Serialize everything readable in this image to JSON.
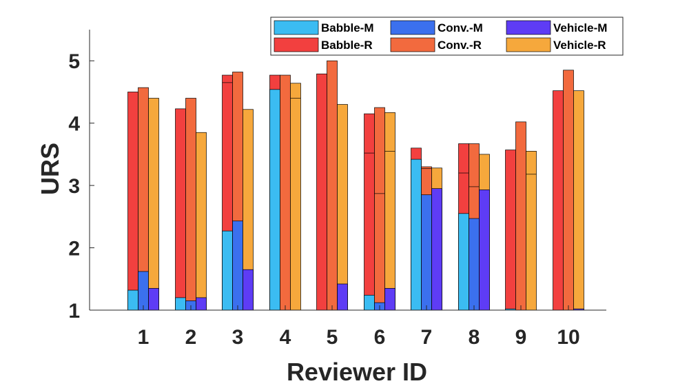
{
  "chart_data": {
    "type": "bar",
    "stacked_overlay": true,
    "xlabel": "Reviewer ID",
    "ylabel": "URS",
    "ylim": [
      1,
      5.5
    ],
    "yticks": [
      1,
      2,
      3,
      4,
      5
    ],
    "categories": [
      "1",
      "2",
      "3",
      "4",
      "5",
      "6",
      "7",
      "8",
      "9",
      "10"
    ],
    "groups": [
      {
        "name": "Babble",
        "m_series": "Babble-M",
        "r_series": "Babble-R"
      },
      {
        "name": "Conv.",
        "m_series": "Conv.-M",
        "r_series": "Conv.-R"
      },
      {
        "name": "Vehicle",
        "m_series": "Vehicle-M",
        "r_series": "Vehicle-R"
      }
    ],
    "series": [
      {
        "name": "Babble-M",
        "color": "#3bbcf2",
        "values": [
          1.32,
          1.2,
          2.27,
          4.54,
          1.0,
          1.24,
          3.42,
          2.55,
          1.02,
          1.0
        ]
      },
      {
        "name": "Conv.-M",
        "color": "#3b70ee",
        "values": [
          1.62,
          1.15,
          2.43,
          1.0,
          1.0,
          1.12,
          2.85,
          2.47,
          1.0,
          1.0
        ]
      },
      {
        "name": "Vehicle-M",
        "color": "#5e3cf5",
        "values": [
          1.35,
          1.2,
          1.65,
          1.0,
          1.42,
          1.35,
          2.95,
          2.93,
          1.0,
          1.02
        ]
      },
      {
        "name": "Babble-R",
        "color": "#f2403f",
        "values": [
          4.5,
          4.23,
          4.77,
          4.77,
          4.79,
          4.15,
          3.6,
          3.67,
          3.57,
          4.52
        ]
      },
      {
        "name": "Conv.-R",
        "color": "#f26a3e",
        "values": [
          4.57,
          4.4,
          4.82,
          4.77,
          5.0,
          4.25,
          3.3,
          3.67,
          4.02,
          4.85
        ]
      },
      {
        "name": "Vehicle-R",
        "color": "#f6a83c",
        "values": [
          4.4,
          3.85,
          4.22,
          4.64,
          4.3,
          4.17,
          3.28,
          3.5,
          3.55,
          4.52
        ]
      }
    ],
    "extra_segment_lines": [
      {
        "category": "3",
        "group": "Babble",
        "y": 4.65
      },
      {
        "category": "4",
        "group": "Vehicle",
        "y": 4.4
      },
      {
        "category": "6",
        "group": "Babble",
        "y": 3.52
      },
      {
        "category": "6",
        "group": "Conv.",
        "y": 2.87
      },
      {
        "category": "6",
        "group": "Vehicle",
        "y": 3.55
      },
      {
        "category": "7",
        "group": "Conv.",
        "y": 3.27
      },
      {
        "category": "8",
        "group": "Babble",
        "y": 3.2
      },
      {
        "category": "8",
        "group": "Conv.",
        "y": 2.98
      },
      {
        "category": "9",
        "group": "Vehicle",
        "y": 3.18
      }
    ],
    "legend": {
      "placement": "top-right",
      "columns": 3,
      "entries": [
        "Babble-M",
        "Conv.-M",
        "Vehicle-M",
        "Babble-R",
        "Conv.-R",
        "Vehicle-R"
      ]
    },
    "grid": false
  }
}
